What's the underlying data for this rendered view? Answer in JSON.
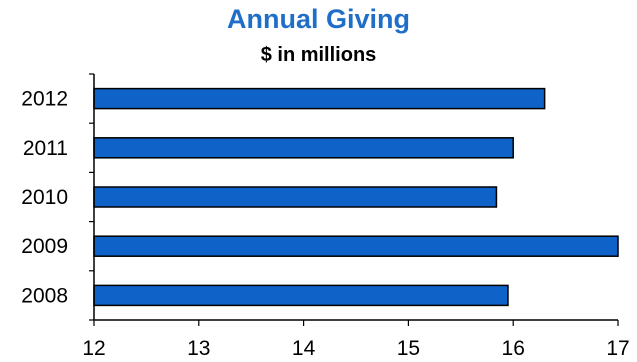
{
  "chart_data": {
    "type": "bar",
    "orientation": "horizontal",
    "title": "Annual Giving",
    "subtitle": "$ in millions",
    "categories": [
      "2012",
      "2011",
      "2010",
      "2009",
      "2008"
    ],
    "values": [
      16.3,
      16.0,
      15.84,
      17.0,
      15.95
    ],
    "xlim": [
      12,
      17
    ],
    "xticks": [
      "12",
      "13",
      "14",
      "15",
      "16",
      "17"
    ],
    "grid": false,
    "legend": "none",
    "bar_color": "#0F62C8",
    "bar_edge_color": "#000000",
    "title_color": "#1F6FC9"
  }
}
